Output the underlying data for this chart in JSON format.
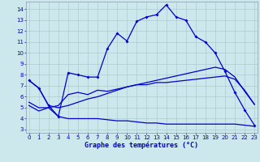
{
  "title": "Graphe des températures (°C)",
  "background_color": "#cce8ec",
  "line_color": "#0000cc",
  "grid_color": "#aacccc",
  "x_ticks": [
    0,
    1,
    2,
    3,
    4,
    5,
    6,
    7,
    8,
    9,
    10,
    11,
    12,
    13,
    14,
    15,
    16,
    17,
    18,
    19,
    20,
    21,
    22,
    23
  ],
  "y_ticks": [
    3,
    4,
    5,
    6,
    7,
    8,
    9,
    10,
    11,
    12,
    13,
    14
  ],
  "ylim": [
    2.7,
    14.7
  ],
  "xlim": [
    -0.3,
    23.3
  ],
  "curve_actual": {
    "x": [
      0,
      1,
      2,
      3,
      4,
      5,
      6,
      7,
      8,
      9,
      10,
      11,
      12,
      13,
      14,
      15,
      16,
      17,
      18,
      19,
      20,
      21,
      22,
      23
    ],
    "y": [
      7.5,
      6.8,
      5.2,
      4.2,
      8.2,
      8.0,
      7.8,
      7.8,
      10.4,
      11.8,
      11.1,
      12.9,
      13.3,
      13.5,
      14.4,
      13.3,
      13.0,
      11.5,
      11.0,
      10.0,
      8.3,
      6.4,
      4.8,
      3.4
    ]
  },
  "curve_max": {
    "x": [
      0,
      1,
      2,
      3,
      4,
      5,
      6,
      7,
      8,
      9,
      10,
      11,
      12,
      13,
      14,
      15,
      16,
      17,
      18,
      19,
      20,
      21,
      22,
      23
    ],
    "y": [
      7.5,
      6.8,
      5.2,
      5.0,
      5.2,
      5.5,
      5.8,
      6.0,
      6.3,
      6.6,
      6.9,
      7.1,
      7.3,
      7.5,
      7.7,
      7.9,
      8.1,
      8.3,
      8.5,
      8.7,
      8.5,
      7.8,
      6.5,
      5.3
    ]
  },
  "curve_min": {
    "x": [
      0,
      1,
      2,
      3,
      4,
      5,
      6,
      7,
      8,
      9,
      10,
      11,
      12,
      13,
      14,
      15,
      16,
      17,
      18,
      19,
      20,
      21,
      22,
      23
    ],
    "y": [
      5.5,
      5.0,
      5.0,
      4.2,
      4.0,
      4.0,
      4.0,
      4.0,
      3.9,
      3.8,
      3.8,
      3.7,
      3.6,
      3.6,
      3.5,
      3.5,
      3.5,
      3.5,
      3.5,
      3.5,
      3.5,
      3.5,
      3.4,
      3.3
    ]
  },
  "curve_dew": {
    "x": [
      0,
      1,
      2,
      3,
      4,
      5,
      6,
      7,
      8,
      9,
      10,
      11,
      12,
      13,
      14,
      15,
      16,
      17,
      18,
      19,
      20,
      21,
      22,
      23
    ],
    "y": [
      5.2,
      4.7,
      5.0,
      5.2,
      6.2,
      6.4,
      6.2,
      6.6,
      6.5,
      6.7,
      6.9,
      7.1,
      7.1,
      7.3,
      7.3,
      7.4,
      7.5,
      7.6,
      7.7,
      7.8,
      7.9,
      7.6,
      6.6,
      5.3
    ]
  }
}
